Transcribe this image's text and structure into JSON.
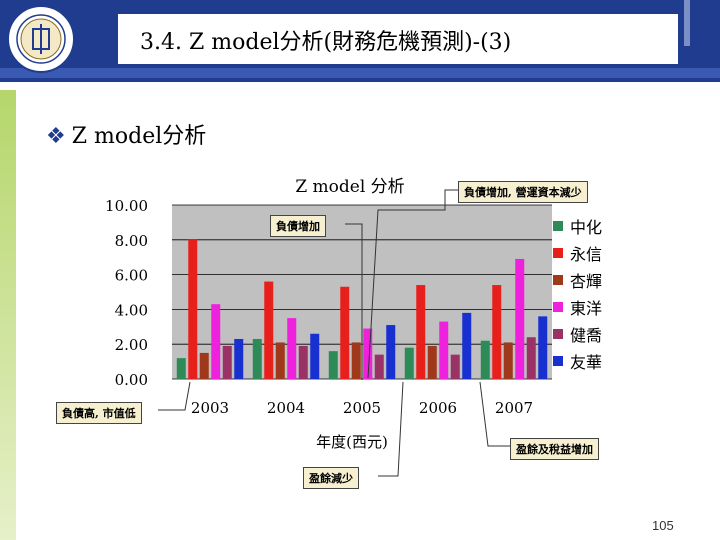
{
  "slide": {
    "title": "3.4. Z model分析(財務危機預測)-(3)",
    "bullet_text": "Z model分析",
    "page_number": "105",
    "logo_icon": "university-seal-icon"
  },
  "callouts": {
    "debt_increase_capital_decrease": "負債增加, 營運資本減少",
    "debt_increase": "負債增加",
    "high_debt_low_value": "負債高, 市值低",
    "profit_and_retained_increase": "盈餘及稅益增加",
    "profit_decrease": "盈餘減少"
  },
  "chart_data": {
    "type": "bar",
    "title": "Z model 分析",
    "xlabel": "年度(西元)",
    "ylabel": "",
    "categories": [
      "2003",
      "2004",
      "2005",
      "2006",
      "2007"
    ],
    "ylim": [
      0,
      10
    ],
    "yticks": [
      "0.00",
      "2.00",
      "4.00",
      "6.00",
      "8.00",
      "10.00"
    ],
    "grid": true,
    "legend_position": "right",
    "series": [
      {
        "name": "中化",
        "color": "#2e8b57",
        "values": [
          1.2,
          2.3,
          1.6,
          1.8,
          2.2
        ]
      },
      {
        "name": "永信",
        "color": "#e8201c",
        "values": [
          8.0,
          5.6,
          5.3,
          5.4,
          5.4
        ]
      },
      {
        "name": "杏輝",
        "color": "#a0391b",
        "values": [
          1.5,
          2.1,
          2.1,
          1.9,
          2.1
        ]
      },
      {
        "name": "東洋",
        "color": "#ee22dd",
        "values": [
          4.3,
          3.5,
          2.9,
          3.3,
          6.9
        ]
      },
      {
        "name": "健喬",
        "color": "#993366",
        "values": [
          1.9,
          1.9,
          1.4,
          1.4,
          2.4
        ]
      },
      {
        "name": "友華",
        "color": "#1830d0",
        "values": [
          2.3,
          2.6,
          3.1,
          3.8,
          3.6
        ]
      }
    ]
  }
}
